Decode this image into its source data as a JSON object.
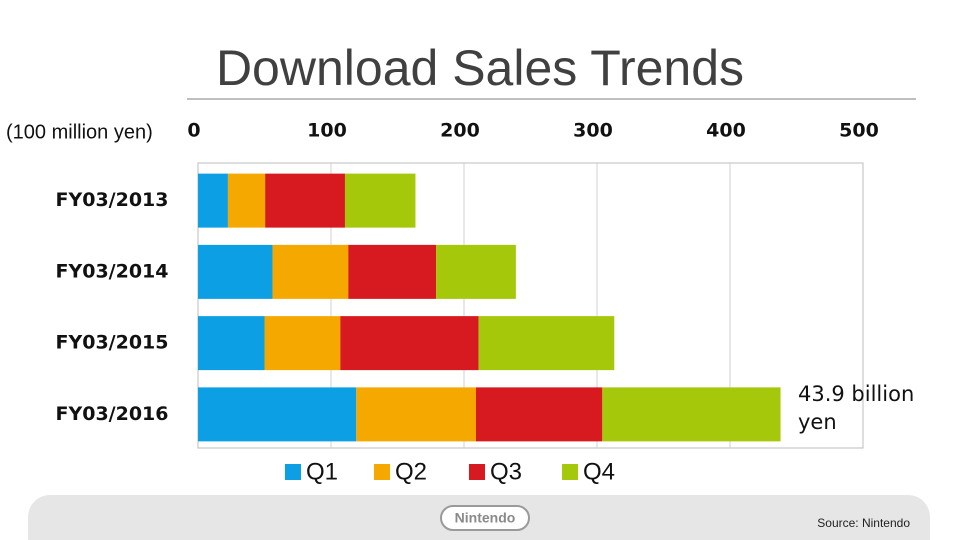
{
  "chart_data": {
    "type": "stacked-barh",
    "title": "Download Sales Trends",
    "xlabel": "(100 million yen)",
    "categories": [
      "FY03/2013",
      "FY03/2014",
      "FY03/2015",
      "FY03/2016"
    ],
    "series": [
      {
        "name": "Q1",
        "color": "#0d9fe3",
        "values": [
          22.5,
          56,
          50,
          119
        ]
      },
      {
        "name": "Q2",
        "color": "#f5a800",
        "values": [
          28,
          57,
          57,
          90
        ]
      },
      {
        "name": "Q3",
        "color": "#d71920",
        "values": [
          60,
          66,
          104,
          95
        ]
      },
      {
        "name": "Q4",
        "color": "#a5c80a",
        "values": [
          53,
          60,
          102,
          134
        ]
      }
    ],
    "xlim": [
      0,
      500
    ],
    "xticks": [
      0,
      100,
      200,
      300,
      400,
      500
    ],
    "grid": true,
    "annotation": "43.9 billion yen",
    "source": "Source:  Nintendo",
    "logo_text": "Nintendo"
  }
}
